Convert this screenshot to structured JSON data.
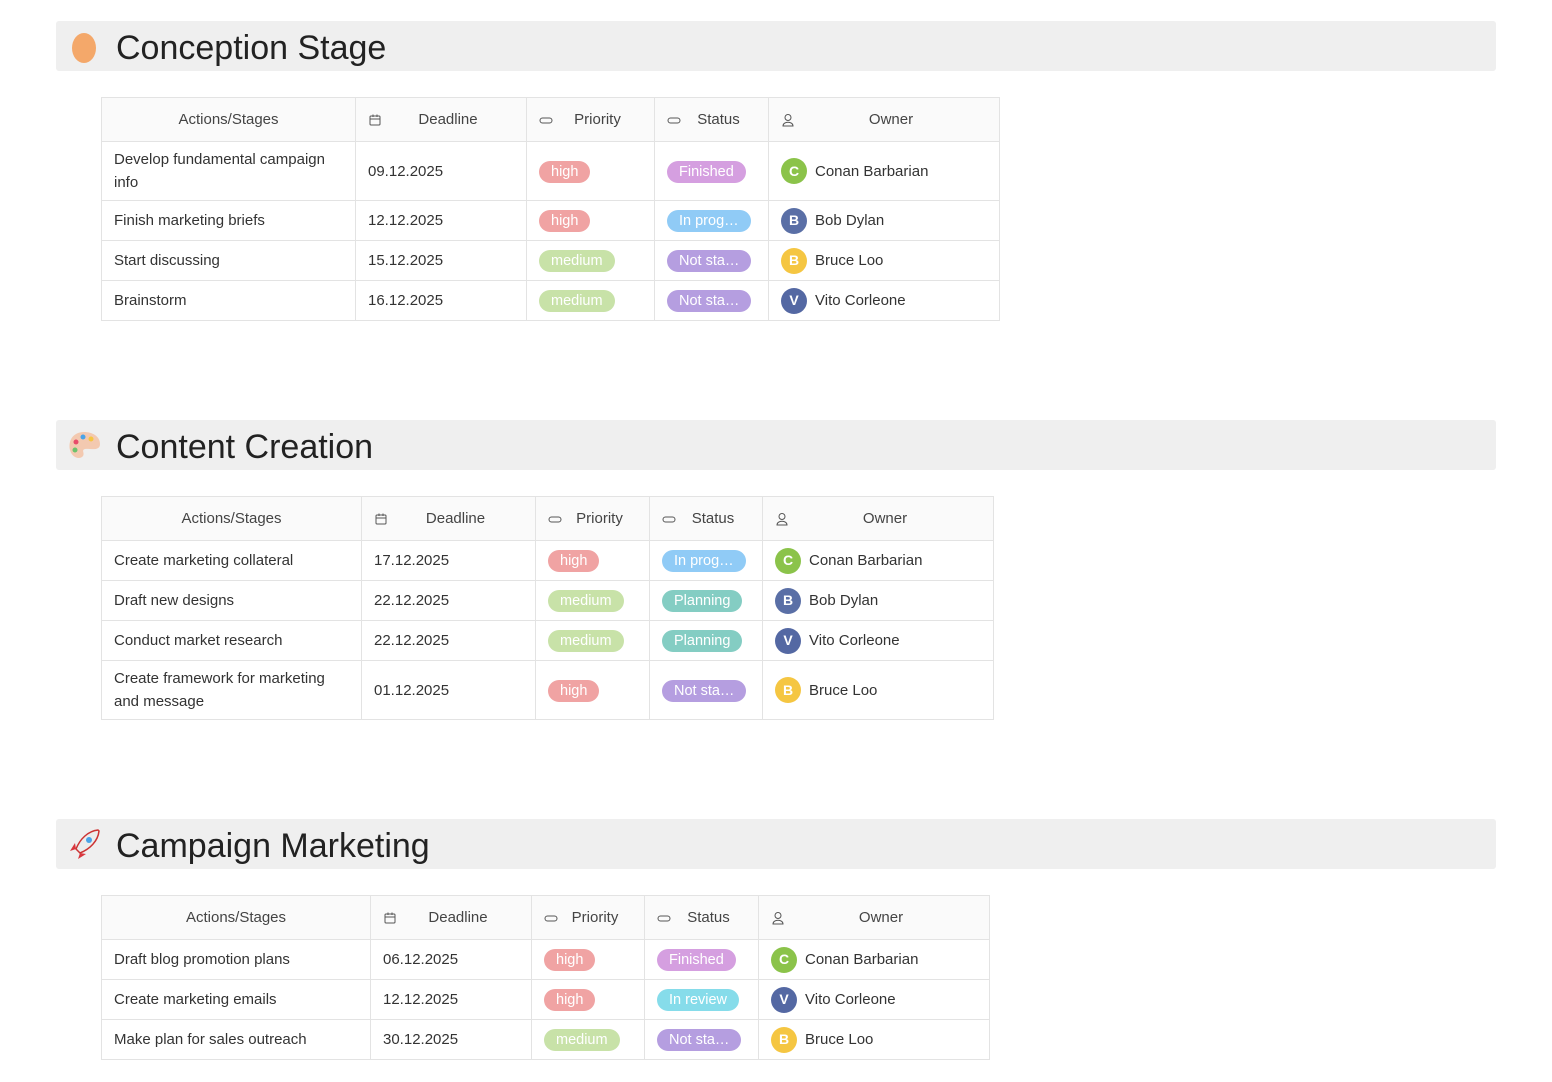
{
  "sections": [
    {
      "title": "Conception Stage",
      "table": {
        "headers": [
          "Actions/Stages",
          "Deadline",
          "Priority",
          "Status",
          "Owner"
        ],
        "rows": [
          {
            "action": "Develop fundamental campaign info",
            "deadline": "09.12.2025",
            "priority": "high",
            "priority_color": "#f0a3a3",
            "status": "Finished",
            "status_color": "#d59fe0",
            "initial": "C",
            "avatar_color": "#8bc34a",
            "owner": "Conan Barbarian"
          },
          {
            "action": "Finish marketing briefs",
            "deadline": "12.12.2025",
            "priority": "high",
            "priority_color": "#f0a3a3",
            "status": "In prog…",
            "status_color": "#90cbf6",
            "initial": "B",
            "avatar_color": "#5a6fa6",
            "owner": "Bob Dylan"
          },
          {
            "action": "Start discussing",
            "deadline": "15.12.2025",
            "priority": "medium",
            "priority_color": "#c8e2a8",
            "status": "Not sta…",
            "status_color": "#b59ee0",
            "initial": "B",
            "avatar_color": "#f5c642",
            "owner": "Bruce Loo"
          },
          {
            "action": "Brainstorm",
            "deadline": "16.12.2025",
            "priority": "medium",
            "priority_color": "#c8e2a8",
            "status": "Not sta…",
            "status_color": "#b59ee0",
            "initial": "V",
            "avatar_color": "#5468a3",
            "owner": "Vito Corleone"
          }
        ]
      }
    },
    {
      "title": "Content Creation",
      "table": {
        "headers": [
          "Actions/Stages",
          "Deadline",
          "Priority",
          "Status",
          "Owner"
        ],
        "rows": [
          {
            "action": "Create marketing collateral",
            "deadline": "17.12.2025",
            "priority": "high",
            "priority_color": "#f0a3a3",
            "status": "In prog…",
            "status_color": "#90cbf6",
            "initial": "C",
            "avatar_color": "#8bc34a",
            "owner": "Conan Barbarian"
          },
          {
            "action": "Draft new designs",
            "deadline": "22.12.2025",
            "priority": "medium",
            "priority_color": "#c8e2a8",
            "status": "Planning",
            "status_color": "#84cdc3",
            "initial": "B",
            "avatar_color": "#5a6fa6",
            "owner": "Bob Dylan"
          },
          {
            "action": "Conduct market research",
            "deadline": "22.12.2025",
            "priority": "medium",
            "priority_color": "#c8e2a8",
            "status": "Planning",
            "status_color": "#84cdc3",
            "initial": "V",
            "avatar_color": "#5468a3",
            "owner": "Vito Corleone"
          },
          {
            "action": "Create framework for marketing and message",
            "deadline": "01.12.2025",
            "priority": "high",
            "priority_color": "#f0a3a3",
            "status": "Not sta…",
            "status_color": "#b59ee0",
            "initial": "B",
            "avatar_color": "#f5c642",
            "owner": "Bruce Loo"
          }
        ]
      }
    },
    {
      "title": "Campaign Marketing",
      "table": {
        "headers": [
          "Actions/Stages",
          "Deadline",
          "Priority",
          "Status",
          "Owner"
        ],
        "rows": [
          {
            "action": "Draft blog promotion plans",
            "deadline": "06.12.2025",
            "priority": "high",
            "priority_color": "#f0a3a3",
            "status": "Finished",
            "status_color": "#d59fe0",
            "initial": "C",
            "avatar_color": "#8bc34a",
            "owner": "Conan Barbarian"
          },
          {
            "action": "Create marketing emails",
            "deadline": "12.12.2025",
            "priority": "high",
            "priority_color": "#f0a3a3",
            "status": "In review",
            "status_color": "#86dcea",
            "initial": "V",
            "avatar_color": "#5468a3",
            "owner": "Vito Corleone"
          },
          {
            "action": "Make plan for sales outreach",
            "deadline": "30.12.2025",
            "priority": "medium",
            "priority_color": "#c8e2a8",
            "status": "Not sta…",
            "status_color": "#b59ee0",
            "initial": "B",
            "avatar_color": "#f5c642",
            "owner": "Bruce Loo"
          }
        ]
      }
    }
  ]
}
